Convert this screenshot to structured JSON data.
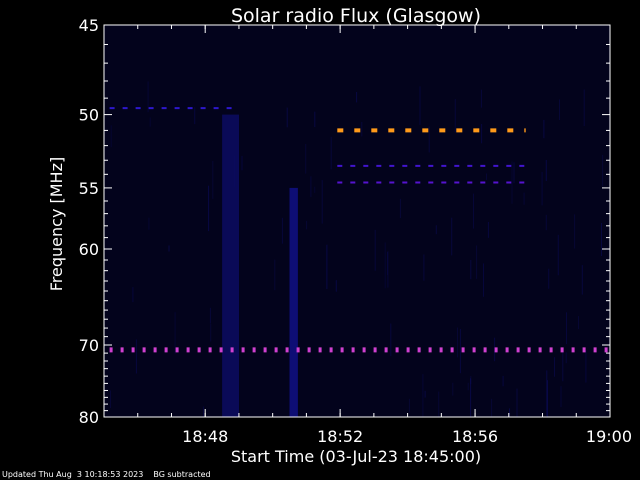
{
  "chart_data": {
    "type": "heatmap",
    "title": "Solar radio Flux (Glasgow)",
    "xlabel": "Start Time (03-Jul-23 18:45:00)",
    "ylabel": "Frequency [MHz]",
    "x_range_minutes_after_18_45": [
      0,
      15
    ],
    "xlim": [
      "18:45:00",
      "19:00:00"
    ],
    "ylim_mhz": [
      45,
      80
    ],
    "y_scale": "reciprocal",
    "x_ticks": [
      "18:48",
      "18:52",
      "18:56",
      "19:00"
    ],
    "y_ticks": [
      45,
      50,
      55,
      60,
      70,
      80
    ],
    "y_tick_labels": [
      "45",
      "50",
      "55",
      "60",
      "70",
      "80"
    ],
    "background_color": "#000000",
    "plot_background_color": "#03031c",
    "colormap": [
      "#03031c",
      "#0a0a55",
      "#1a1acc",
      "#6a10d0",
      "#d040d0",
      "#ff9a1a"
    ],
    "features": [
      {
        "kind": "channel_line",
        "frequency_mhz": 49.6,
        "start_time": "18:45:10",
        "end_time": "18:49:00",
        "intensity": 0.45,
        "style": "dashed"
      },
      {
        "kind": "channel_line",
        "frequency_mhz": 51.0,
        "start_time": "18:51:55",
        "end_time": "18:57:30",
        "intensity": 1.0,
        "style": "dashed"
      },
      {
        "kind": "channel_line",
        "frequency_mhz": 53.4,
        "start_time": "18:51:55",
        "end_time": "18:57:30",
        "intensity": 0.5,
        "style": "dashed"
      },
      {
        "kind": "channel_line",
        "frequency_mhz": 54.6,
        "start_time": "18:51:55",
        "end_time": "18:57:30",
        "intensity": 0.55,
        "style": "dashed"
      },
      {
        "kind": "channel_line",
        "frequency_mhz": 70.6,
        "start_time": "18:45:10",
        "end_time": "19:00:00",
        "intensity": 0.8,
        "style": "dotted"
      },
      {
        "kind": "vertical_band",
        "start_time": "18:48:30",
        "end_time": "18:49:00",
        "freq_range_mhz": [
          50,
          80
        ],
        "intensity": 0.22
      },
      {
        "kind": "vertical_band",
        "start_time": "18:50:30",
        "end_time": "18:50:45",
        "freq_range_mhz": [
          55,
          80
        ],
        "intensity": 0.28
      }
    ]
  },
  "footer": {
    "updated": "Updated Thu Aug  3 10:18:53 2023",
    "note": "BG subtracted"
  },
  "colors": {
    "axis": "#ffffff",
    "text": "#ffffff"
  }
}
